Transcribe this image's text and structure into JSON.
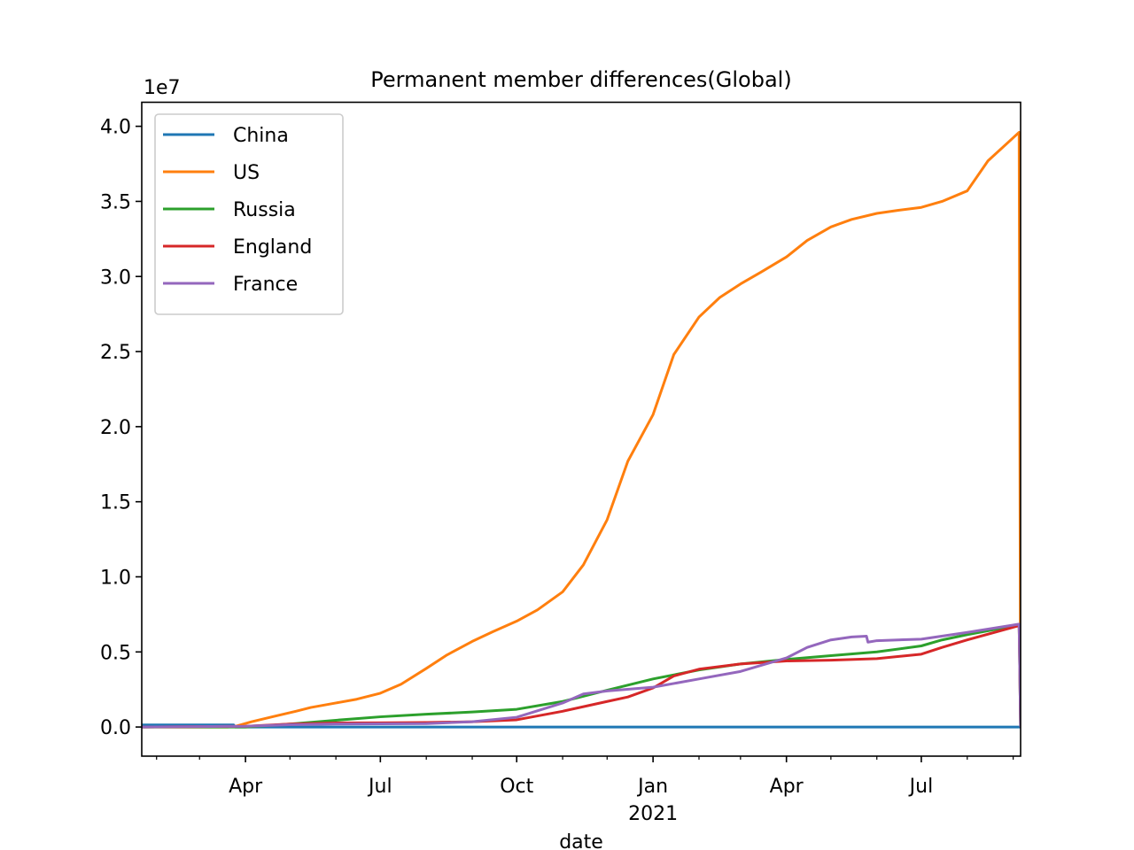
{
  "chart_data": {
    "type": "line",
    "title": "Permanent member differences(Global)",
    "xlabel": "date",
    "ylabel": "",
    "y_offset_label": "1e7",
    "y_multiplier": 10000000,
    "ylim": [
      -1940000,
      41600000
    ],
    "xlim": [
      "2020-01-22",
      "2021-09-06"
    ],
    "y_ticks": [
      0,
      5000000,
      10000000,
      15000000,
      20000000,
      25000000,
      30000000,
      35000000,
      40000000
    ],
    "y_tick_labels": [
      "0.0",
      "0.5",
      "1.0",
      "1.5",
      "2.0",
      "2.5",
      "3.0",
      "3.5",
      "4.0"
    ],
    "x_ticks": [
      {
        "date": "2020-04-01",
        "label": "Apr",
        "sub": ""
      },
      {
        "date": "2020-07-01",
        "label": "Jul",
        "sub": ""
      },
      {
        "date": "2020-10-01",
        "label": "Oct",
        "sub": ""
      },
      {
        "date": "2021-01-01",
        "label": "Jan",
        "sub": "2021"
      },
      {
        "date": "2021-04-01",
        "label": "Apr",
        "sub": ""
      },
      {
        "date": "2021-07-01",
        "label": "Jul",
        "sub": ""
      }
    ],
    "x_minor_ticks": [
      "2020-02-01",
      "2020-03-01",
      "2020-05-01",
      "2020-06-01",
      "2020-08-01",
      "2020-09-01",
      "2020-11-01",
      "2020-12-01",
      "2021-02-01",
      "2021-03-01",
      "2021-05-01",
      "2021-06-01",
      "2021-08-01",
      "2021-09-01"
    ],
    "legend_position": "upper-left",
    "series": [
      {
        "name": "China",
        "color": "#1f77b4",
        "points": [
          [
            "2020-01-22",
            140000
          ],
          [
            "2020-02-10",
            140000
          ],
          [
            "2020-03-01",
            140000
          ],
          [
            "2020-03-20",
            140000
          ],
          [
            "2020-03-24",
            140000
          ],
          [
            "2020-03-25",
            0
          ],
          [
            "2021-09-06",
            0
          ]
        ]
      },
      {
        "name": "US",
        "color": "#ff7f0e",
        "points": [
          [
            "2020-01-22",
            0
          ],
          [
            "2020-03-20",
            0
          ],
          [
            "2020-03-25",
            40000
          ],
          [
            "2020-04-05",
            350000
          ],
          [
            "2020-04-20",
            700000
          ],
          [
            "2020-05-05",
            1050000
          ],
          [
            "2020-05-15",
            1300000
          ],
          [
            "2020-06-01",
            1600000
          ],
          [
            "2020-06-15",
            1850000
          ],
          [
            "2020-07-01",
            2250000
          ],
          [
            "2020-07-15",
            2850000
          ],
          [
            "2020-08-01",
            3900000
          ],
          [
            "2020-08-15",
            4800000
          ],
          [
            "2020-09-01",
            5700000
          ],
          [
            "2020-09-15",
            6350000
          ],
          [
            "2020-10-01",
            7050000
          ],
          [
            "2020-10-15",
            7800000
          ],
          [
            "2020-11-01",
            9000000
          ],
          [
            "2020-11-15",
            10800000
          ],
          [
            "2020-12-01",
            13800000
          ],
          [
            "2020-12-15",
            17700000
          ],
          [
            "2021-01-01",
            20800000
          ],
          [
            "2021-01-15",
            24800000
          ],
          [
            "2021-02-01",
            27300000
          ],
          [
            "2021-02-15",
            28600000
          ],
          [
            "2021-03-01",
            29500000
          ],
          [
            "2021-03-15",
            30300000
          ],
          [
            "2021-04-01",
            31300000
          ],
          [
            "2021-04-15",
            32400000
          ],
          [
            "2021-05-01",
            33300000
          ],
          [
            "2021-05-15",
            33800000
          ],
          [
            "2021-06-01",
            34200000
          ],
          [
            "2021-06-15",
            34400000
          ],
          [
            "2021-07-01",
            34600000
          ],
          [
            "2021-07-15",
            35000000
          ],
          [
            "2021-08-01",
            35700000
          ],
          [
            "2021-08-15",
            37700000
          ],
          [
            "2021-09-05",
            39600000
          ],
          [
            "2021-09-06",
            0
          ]
        ]
      },
      {
        "name": "Russia",
        "color": "#2ca02c",
        "points": [
          [
            "2020-01-22",
            0
          ],
          [
            "2020-04-01",
            0
          ],
          [
            "2020-05-01",
            200000
          ],
          [
            "2020-06-01",
            450000
          ],
          [
            "2020-07-01",
            680000
          ],
          [
            "2020-08-01",
            850000
          ],
          [
            "2020-09-01",
            1000000
          ],
          [
            "2020-10-01",
            1180000
          ],
          [
            "2020-11-01",
            1700000
          ],
          [
            "2020-12-01",
            2450000
          ],
          [
            "2021-01-01",
            3200000
          ],
          [
            "2021-02-01",
            3800000
          ],
          [
            "2021-03-01",
            4200000
          ],
          [
            "2021-04-01",
            4500000
          ],
          [
            "2021-05-01",
            4750000
          ],
          [
            "2021-06-01",
            5000000
          ],
          [
            "2021-07-01",
            5400000
          ],
          [
            "2021-07-15",
            5800000
          ],
          [
            "2021-08-01",
            6150000
          ],
          [
            "2021-09-05",
            6800000
          ],
          [
            "2021-09-06",
            0
          ]
        ]
      },
      {
        "name": "England",
        "color": "#d62728",
        "points": [
          [
            "2020-01-22",
            0
          ],
          [
            "2020-04-01",
            50000
          ],
          [
            "2020-05-01",
            200000
          ],
          [
            "2020-06-01",
            270000
          ],
          [
            "2020-07-01",
            280000
          ],
          [
            "2020-08-01",
            300000
          ],
          [
            "2020-09-01",
            350000
          ],
          [
            "2020-10-01",
            480000
          ],
          [
            "2020-11-01",
            1050000
          ],
          [
            "2020-12-01",
            1700000
          ],
          [
            "2020-12-15",
            2000000
          ],
          [
            "2021-01-01",
            2600000
          ],
          [
            "2021-01-15",
            3400000
          ],
          [
            "2021-02-01",
            3850000
          ],
          [
            "2021-03-01",
            4200000
          ],
          [
            "2021-04-01",
            4400000
          ],
          [
            "2021-05-01",
            4450000
          ],
          [
            "2021-06-01",
            4550000
          ],
          [
            "2021-07-01",
            4850000
          ],
          [
            "2021-07-15",
            5300000
          ],
          [
            "2021-08-01",
            5800000
          ],
          [
            "2021-09-05",
            6750000
          ],
          [
            "2021-09-06",
            0
          ]
        ]
      },
      {
        "name": "France",
        "color": "#9467bd",
        "points": [
          [
            "2020-01-22",
            0
          ],
          [
            "2020-04-01",
            50000
          ],
          [
            "2020-05-01",
            150000
          ],
          [
            "2020-06-01",
            200000
          ],
          [
            "2020-07-01",
            210000
          ],
          [
            "2020-08-01",
            230000
          ],
          [
            "2020-09-01",
            350000
          ],
          [
            "2020-10-01",
            650000
          ],
          [
            "2020-11-01",
            1600000
          ],
          [
            "2020-11-15",
            2200000
          ],
          [
            "2020-12-01",
            2400000
          ],
          [
            "2021-01-01",
            2650000
          ],
          [
            "2021-02-01",
            3200000
          ],
          [
            "2021-03-01",
            3700000
          ],
          [
            "2021-04-01",
            4600000
          ],
          [
            "2021-04-15",
            5300000
          ],
          [
            "2021-05-01",
            5800000
          ],
          [
            "2021-05-15",
            6000000
          ],
          [
            "2021-05-25",
            6050000
          ],
          [
            "2021-05-26",
            5650000
          ],
          [
            "2021-06-01",
            5750000
          ],
          [
            "2021-07-01",
            5850000
          ],
          [
            "2021-08-01",
            6300000
          ],
          [
            "2021-09-05",
            6850000
          ],
          [
            "2021-09-06",
            0
          ]
        ]
      }
    ]
  }
}
